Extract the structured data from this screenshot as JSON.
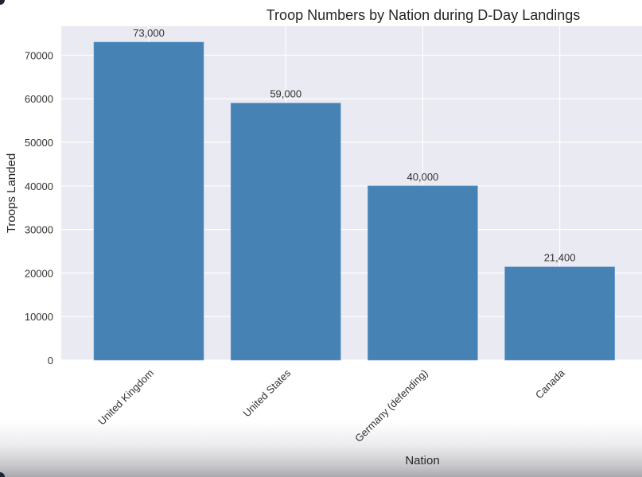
{
  "chart_data": {
    "type": "bar",
    "title": "Troop Numbers by Nation during D-Day Landings",
    "xlabel": "Nation",
    "ylabel": "Troops Landed",
    "categories": [
      "United Kingdom",
      "United States",
      "Germany (defending)",
      "Canada"
    ],
    "values": [
      73000,
      59000,
      40000,
      21400
    ],
    "value_labels": [
      "73,000",
      "59,000",
      "40,000",
      "21,400"
    ],
    "ylim": [
      0,
      76650
    ],
    "yticks": [
      0,
      10000,
      20000,
      30000,
      40000,
      50000,
      60000,
      70000
    ],
    "ytick_labels": [
      "0",
      "10000",
      "20000",
      "30000",
      "40000",
      "50000",
      "60000",
      "70000"
    ],
    "grid": true,
    "bar_color": "#4682b4",
    "background_color": "#eaeaf2",
    "xtick_rotation_deg": 45
  }
}
